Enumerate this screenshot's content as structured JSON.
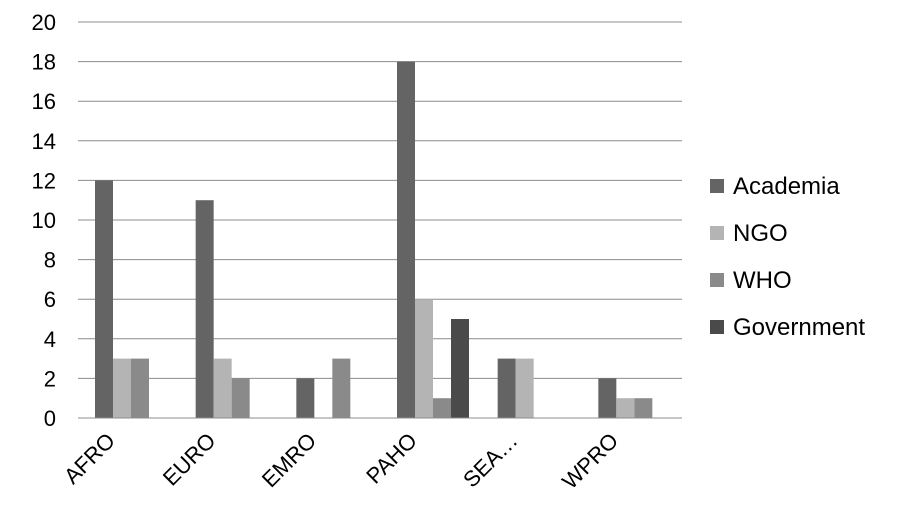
{
  "chart_data": {
    "type": "bar",
    "categories": [
      "AFRO",
      "EURO",
      "EMRO",
      "PAHO",
      "SEA…",
      "WPRO"
    ],
    "series": [
      {
        "name": "Academia",
        "values": [
          12,
          11,
          2,
          18,
          3,
          2
        ],
        "color": "#646464"
      },
      {
        "name": "NGO",
        "values": [
          3,
          3,
          0,
          6,
          3,
          1
        ],
        "color": "#b4b4b4"
      },
      {
        "name": "WHO",
        "values": [
          3,
          2,
          3,
          1,
          0,
          1
        ],
        "color": "#8a8a8a"
      },
      {
        "name": "Government",
        "values": [
          0,
          0,
          0,
          5,
          0,
          0
        ],
        "color": "#4a4a4a"
      }
    ],
    "yticks": [
      "0",
      "2",
      "4",
      "6",
      "8",
      "10",
      "12",
      "14",
      "16",
      "18",
      "20"
    ],
    "ylim": [
      0,
      20
    ],
    "grid": true,
    "legend_position": "right"
  }
}
